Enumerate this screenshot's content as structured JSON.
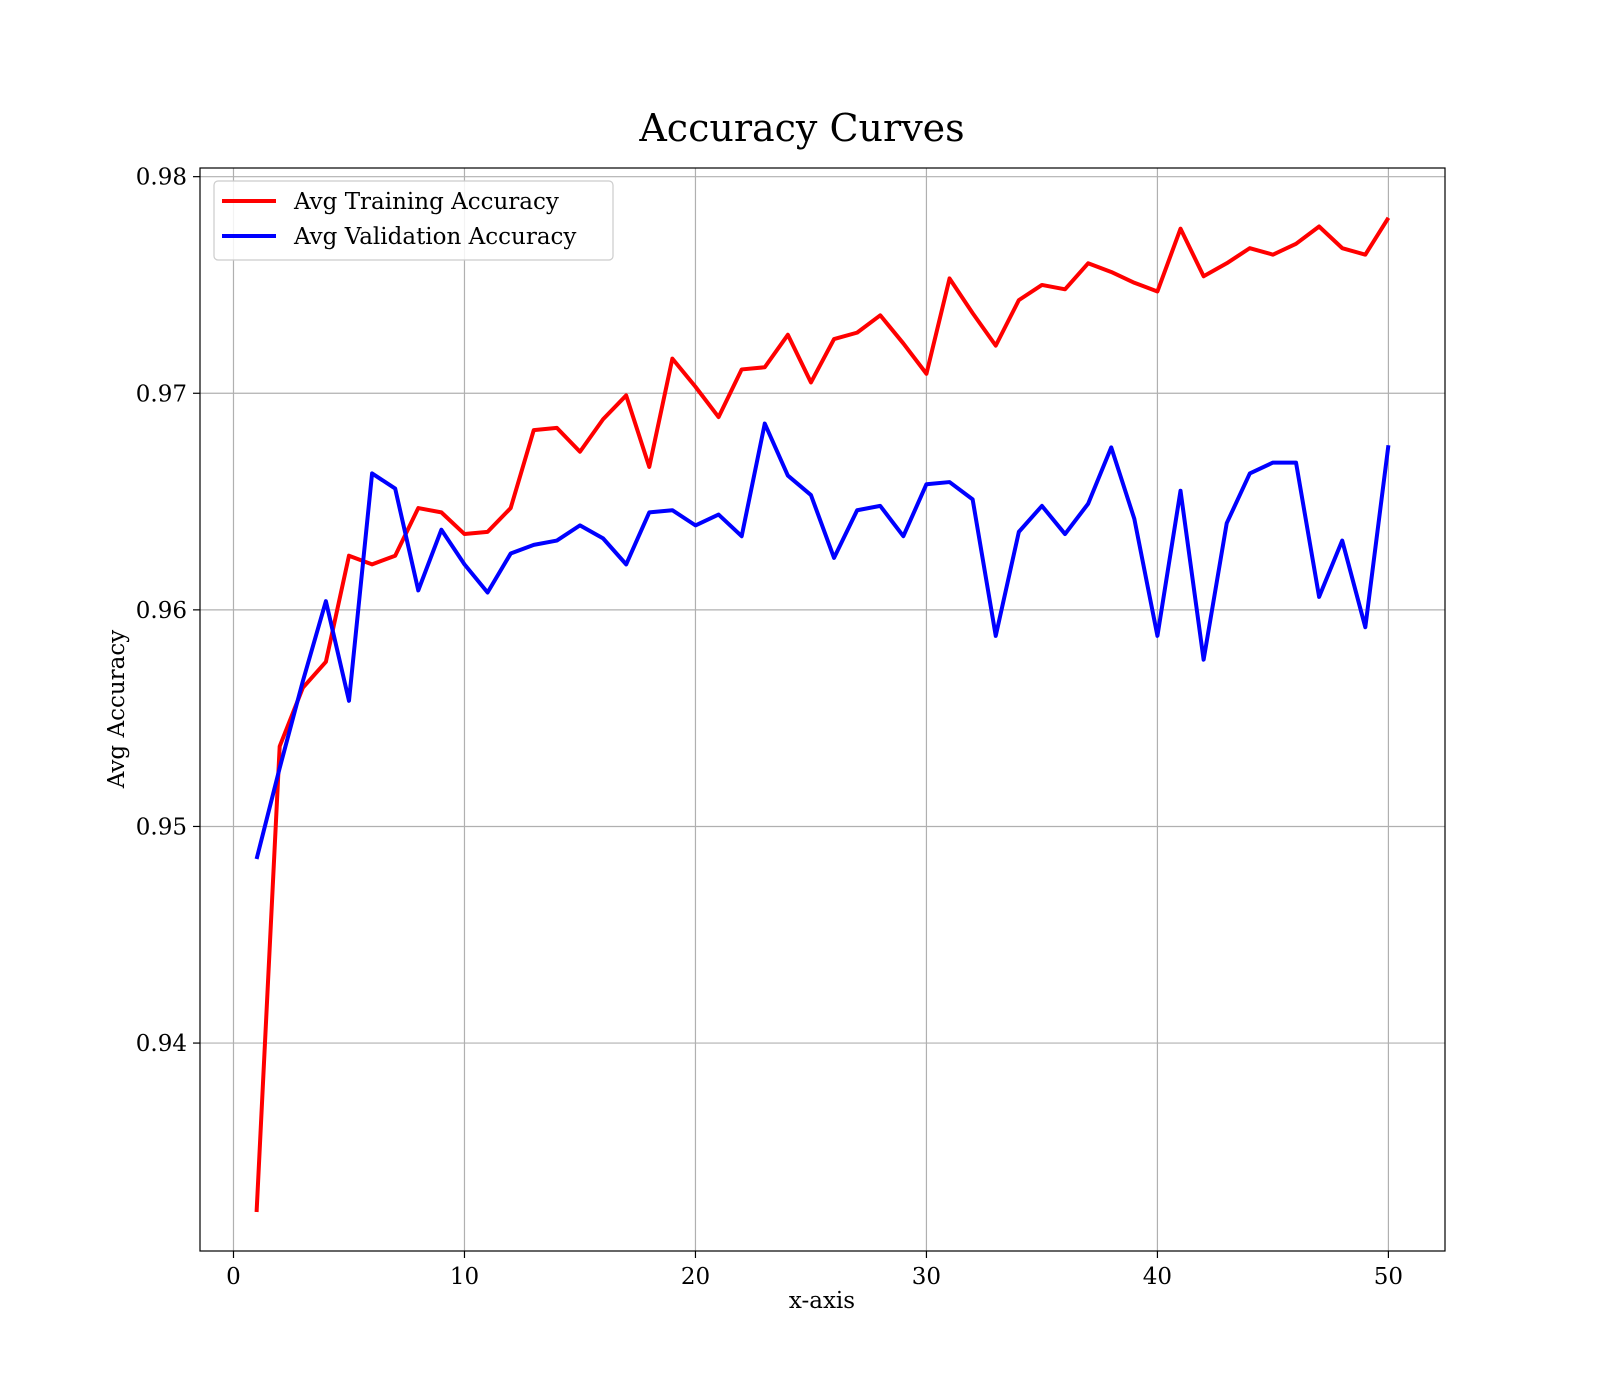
{
  "chart_data": {
    "type": "line",
    "title": "Accuracy Curves",
    "xlabel": "x-axis",
    "ylabel": "Avg Accuracy",
    "xlim": [
      -1.45,
      52.45
    ],
    "ylim": [
      0.9304,
      0.9804
    ],
    "xticks": [
      0,
      10,
      20,
      30,
      40,
      50
    ],
    "xtick_labels": [
      "0",
      "10",
      "20",
      "30",
      "40",
      "50"
    ],
    "yticks": [
      0.94,
      0.95,
      0.96,
      0.97,
      0.98
    ],
    "ytick_labels": [
      "0.94",
      "0.95",
      "0.96",
      "0.97",
      "0.98"
    ],
    "grid": true,
    "legend_position": "upper-left",
    "x": [
      1,
      2,
      3,
      4,
      5,
      6,
      7,
      8,
      9,
      10,
      11,
      12,
      13,
      14,
      15,
      16,
      17,
      18,
      19,
      20,
      21,
      22,
      23,
      24,
      25,
      26,
      27,
      28,
      29,
      30,
      31,
      32,
      33,
      34,
      35,
      36,
      37,
      38,
      39,
      40,
      41,
      42,
      43,
      44,
      45,
      46,
      47,
      48,
      49,
      50
    ],
    "series": [
      {
        "name": "Avg Training Accuracy",
        "color": "#ff0000",
        "values": [
          0.9322,
          0.9537,
          0.9564,
          0.9576,
          0.9625,
          0.9621,
          0.9625,
          0.9647,
          0.9645,
          0.9635,
          0.9636,
          0.9647,
          0.9683,
          0.9684,
          0.9673,
          0.9688,
          0.9699,
          0.9666,
          0.9716,
          0.9703,
          0.9689,
          0.9711,
          0.9712,
          0.9727,
          0.9705,
          0.9725,
          0.9728,
          0.9736,
          0.9723,
          0.9709,
          0.9753,
          0.9737,
          0.9722,
          0.9743,
          0.975,
          0.9748,
          0.976,
          0.9756,
          0.9751,
          0.9747,
          0.9776,
          0.9754,
          0.976,
          0.9767,
          0.9764,
          0.9769,
          0.9777,
          0.9767,
          0.9764,
          0.9781
        ]
      },
      {
        "name": "Avg Validation Accuracy",
        "color": "#0000ff",
        "values": [
          0.9485,
          0.9527,
          0.9567,
          0.9604,
          0.9558,
          0.9663,
          0.9656,
          0.9609,
          0.9637,
          0.9621,
          0.9608,
          0.9626,
          0.963,
          0.9632,
          0.9639,
          0.9633,
          0.9621,
          0.9645,
          0.9646,
          0.9639,
          0.9644,
          0.9634,
          0.9686,
          0.9662,
          0.9653,
          0.9624,
          0.9646,
          0.9648,
          0.9634,
          0.9658,
          0.9659,
          0.9651,
          0.9588,
          0.9636,
          0.9648,
          0.9635,
          0.9649,
          0.9675,
          0.9642,
          0.9588,
          0.9655,
          0.9577,
          0.964,
          0.9663,
          0.9668,
          0.9668,
          0.9606,
          0.9632,
          0.9592,
          0.9676
        ]
      }
    ]
  }
}
